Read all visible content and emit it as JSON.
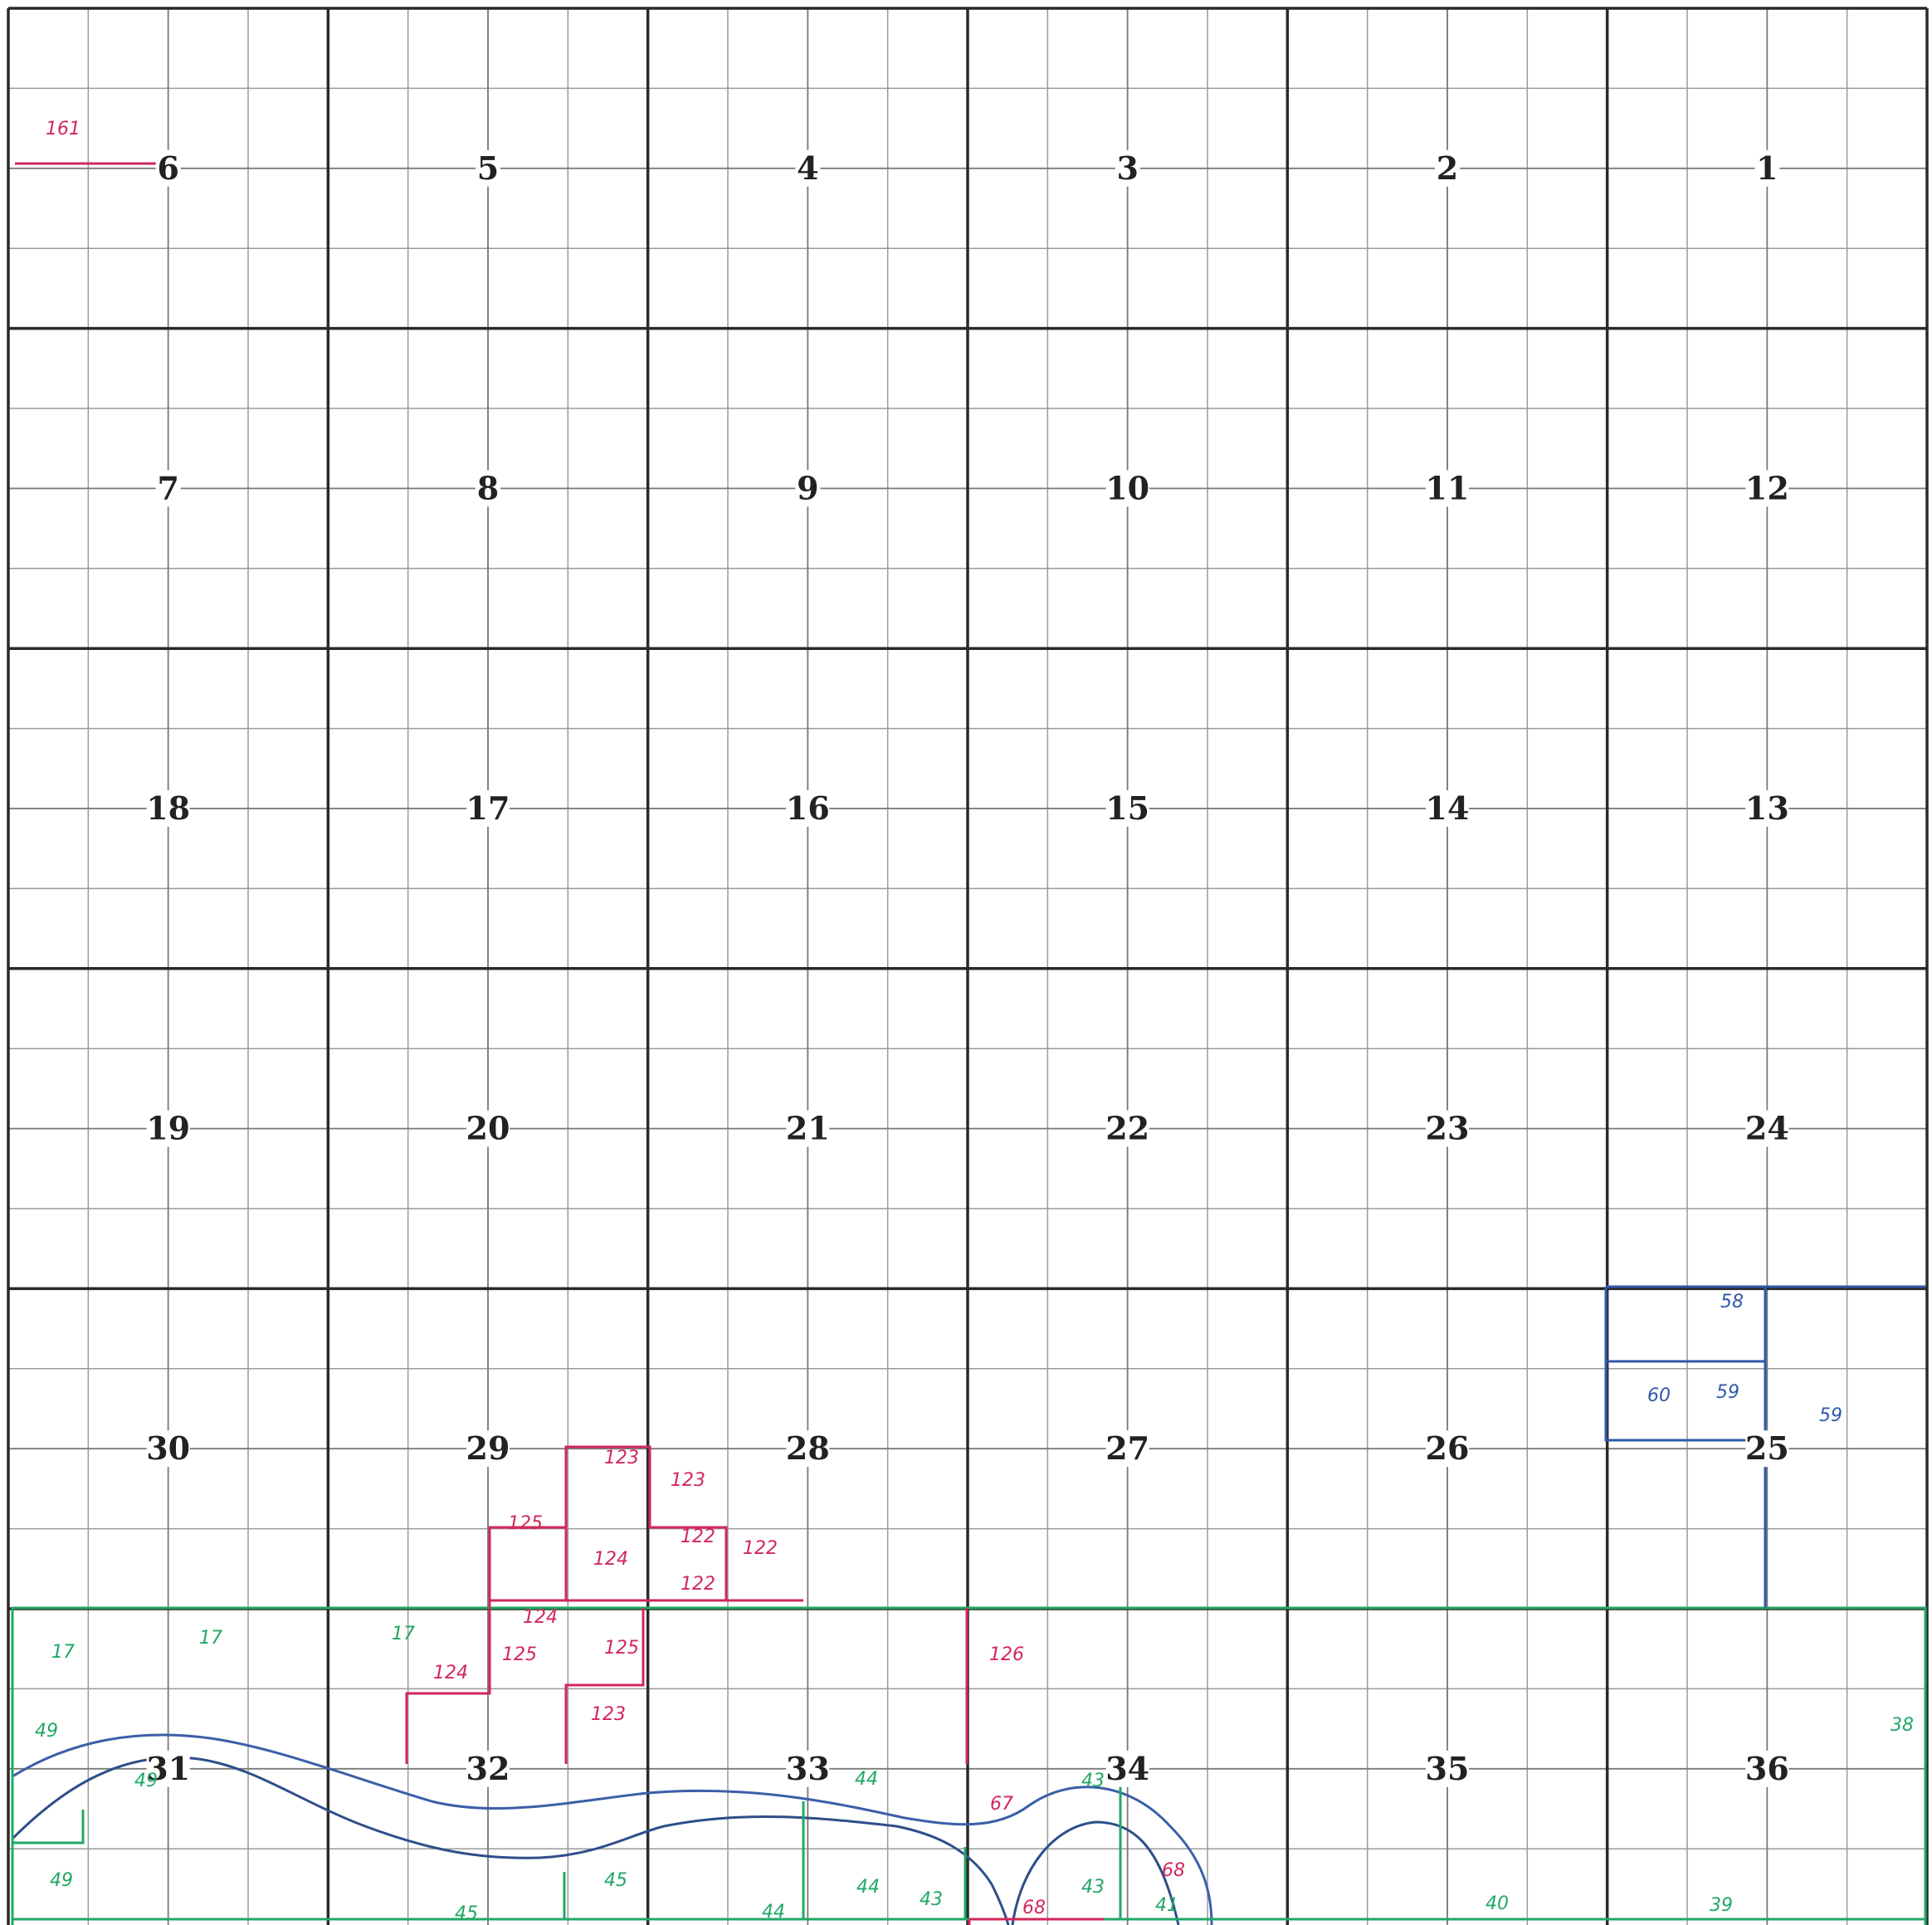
{
  "map": {
    "type": "township-plat",
    "sections": [
      [
        6,
        5,
        4,
        3,
        2,
        1
      ],
      [
        7,
        8,
        9,
        10,
        11,
        12
      ],
      [
        18,
        17,
        16,
        15,
        14,
        13
      ],
      [
        19,
        20,
        21,
        22,
        23,
        24
      ],
      [
        30,
        29,
        28,
        27,
        26,
        25
      ],
      [
        31,
        32,
        33,
        34,
        35,
        36
      ]
    ],
    "colors": {
      "grid_major": "#2a2a2a",
      "grid_minor": "#9a9a9a",
      "red_ink": "#d0285a",
      "green_ink": "#22a866",
      "blue_ink": "#2f5aa8",
      "river": "#3b5fa8"
    },
    "annotations": {
      "red": [
        "161",
        "123",
        "123",
        "122",
        "122",
        "122",
        "125",
        "124",
        "124",
        "125",
        "125",
        "123",
        "124",
        "126",
        "67",
        "68",
        "68"
      ],
      "green": [
        "17",
        "17",
        "17",
        "49",
        "49",
        "49",
        "44",
        "44",
        "44",
        "45",
        "45",
        "43",
        "43",
        "43",
        "41",
        "40",
        "39",
        "38"
      ],
      "blue": [
        "58",
        "59",
        "59",
        "60"
      ]
    }
  }
}
